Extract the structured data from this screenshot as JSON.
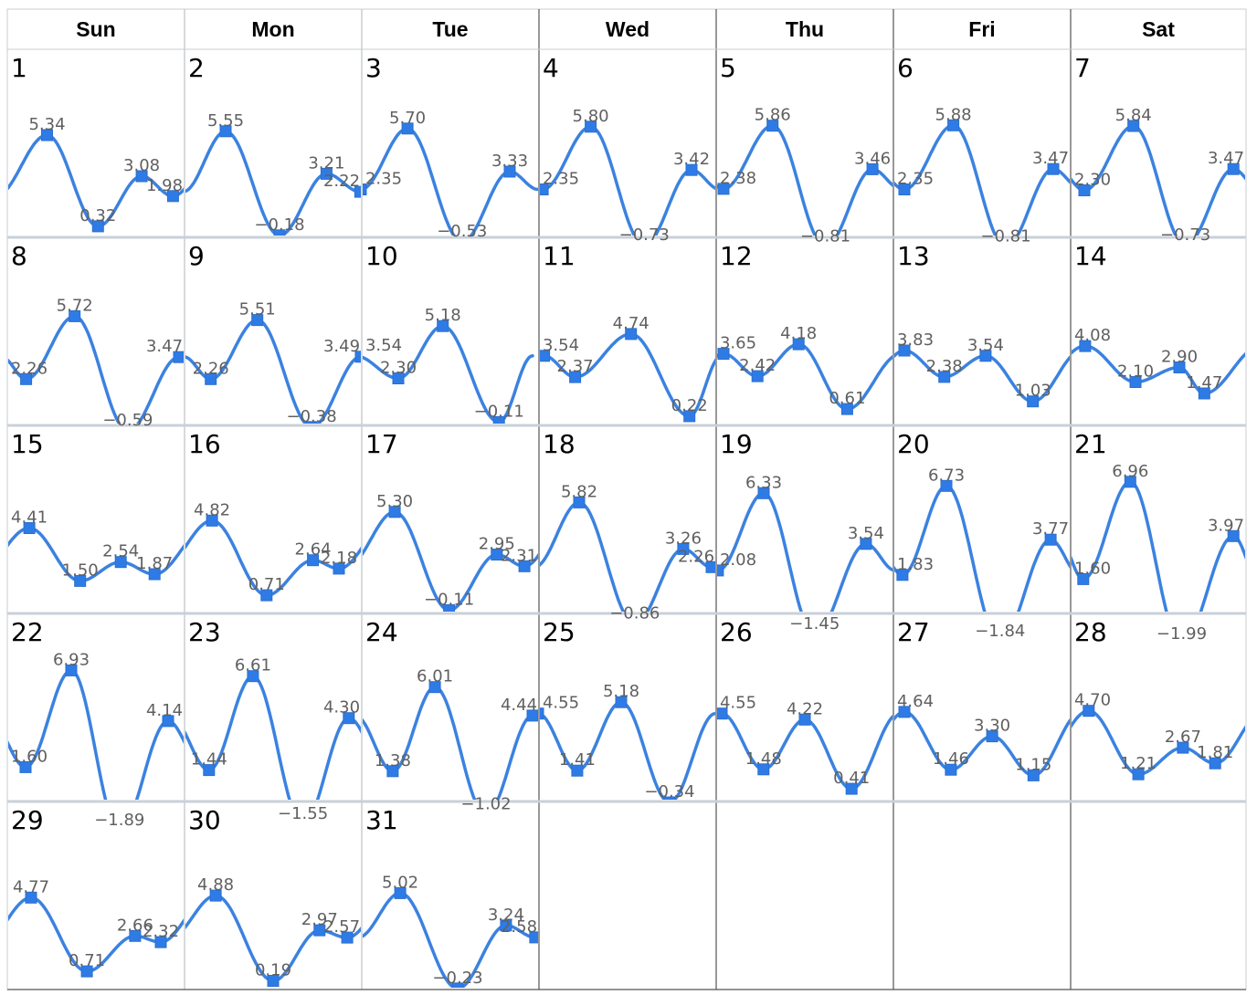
{
  "chart_data": {
    "type": "line",
    "title": "",
    "weekdays": [
      "Sun",
      "Mon",
      "Tue",
      "Wed",
      "Thu",
      "Fri",
      "Sat"
    ],
    "y_range": [
      -2.3,
      7.3
    ],
    "days": [
      {
        "day": "1",
        "points": [
          {
            "t": 0.224,
            "v": 5.34,
            "label": "5.34"
          },
          {
            "t": 0.512,
            "v": 0.32,
            "label": "0.32"
          },
          {
            "t": 0.758,
            "v": 3.08,
            "label": "3.08"
          },
          {
            "t": 0.935,
            "v": 1.98,
            "label": "1.98"
          }
        ]
      },
      {
        "day": "2",
        "points": [
          {
            "t": 0.232,
            "v": 5.55,
            "label": "5.55"
          },
          {
            "t": 0.536,
            "v": -0.18,
            "label": "−0.18"
          },
          {
            "t": 0.801,
            "v": 3.21,
            "label": "3.21"
          },
          {
            "t": 0.992,
            "v": 2.22,
            "label": "2.22"
          }
        ]
      },
      {
        "day": "3",
        "points": [
          {
            "t": 0.258,
            "v": 5.7,
            "label": "5.70"
          },
          {
            "t": 0.566,
            "v": -0.53,
            "label": "−0.53"
          },
          {
            "t": 0.835,
            "v": 3.33,
            "label": "3.33"
          },
          {
            "t": -0.005,
            "v": 2.35,
            "label": "2.35"
          }
        ]
      },
      {
        "day": "4",
        "points": [
          {
            "t": 0.292,
            "v": 5.8,
            "label": "5.80"
          },
          {
            "t": 0.594,
            "v": -0.73,
            "label": "−0.73"
          },
          {
            "t": 0.861,
            "v": 3.42,
            "label": "3.42"
          },
          {
            "t": 0.021,
            "v": 2.35,
            "label": "2.35"
          }
        ]
      },
      {
        "day": "5",
        "points": [
          {
            "t": 0.318,
            "v": 5.86,
            "label": "5.86"
          },
          {
            "t": 0.616,
            "v": -0.81,
            "label": "−0.81"
          },
          {
            "t": 0.882,
            "v": 3.46,
            "label": "3.46"
          },
          {
            "t": 0.041,
            "v": 2.38,
            "label": "2.38"
          }
        ]
      },
      {
        "day": "6",
        "points": [
          {
            "t": 0.338,
            "v": 5.88,
            "label": "5.88"
          },
          {
            "t": 0.634,
            "v": -0.81,
            "label": "−0.81"
          },
          {
            "t": 0.902,
            "v": 3.47,
            "label": "3.47"
          },
          {
            "t": 0.062,
            "v": 2.35,
            "label": "2.35"
          }
        ]
      },
      {
        "day": "7",
        "points": [
          {
            "t": 0.358,
            "v": 5.84,
            "label": "5.84"
          },
          {
            "t": 0.654,
            "v": -0.73,
            "label": "−0.73"
          },
          {
            "t": 0.928,
            "v": 3.47,
            "label": "3.47"
          },
          {
            "t": 0.078,
            "v": 2.3,
            "label": "2.30"
          }
        ]
      },
      {
        "day": "8",
        "points": [
          {
            "t": 0.38,
            "v": 5.72,
            "label": "5.72"
          },
          {
            "t": 0.68,
            "v": -0.59,
            "label": "−0.59"
          },
          {
            "t": 0.969,
            "v": 3.47,
            "label": "3.47"
          },
          {
            "t": 0.106,
            "v": 2.26,
            "label": "2.26"
          }
        ]
      },
      {
        "day": "9",
        "points": [
          {
            "t": 0.411,
            "v": 5.51,
            "label": "5.51"
          },
          {
            "t": 0.717,
            "v": -0.38,
            "label": "−0.38"
          },
          {
            "t": 0.995,
            "v": 3.49,
            "label": "3.49"
          },
          {
            "t": 0.148,
            "v": 2.26,
            "label": "2.26"
          }
        ]
      },
      {
        "day": "10",
        "points": [
          {
            "t": 0.457,
            "v": 5.18,
            "label": "5.18"
          },
          {
            "t": 0.774,
            "v": -0.11,
            "label": "−0.11"
          },
          {
            "t": -0.036,
            "v": 3.54,
            "label": "3.54"
          },
          {
            "t": 0.206,
            "v": 2.3,
            "label": "2.30"
          }
        ]
      },
      {
        "day": "11",
        "points": [
          {
            "t": 0.519,
            "v": 4.74,
            "label": "4.74"
          },
          {
            "t": 0.849,
            "v": 0.22,
            "label": "0.22"
          },
          {
            "t": 0.029,
            "v": 3.54,
            "label": "3.54"
          },
          {
            "t": 0.204,
            "v": 2.37,
            "label": "2.37"
          }
        ]
      },
      {
        "day": "12",
        "points": [
          {
            "t": 0.465,
            "v": 4.18,
            "label": "4.18"
          },
          {
            "t": 0.739,
            "v": 0.61,
            "label": "0.61"
          },
          {
            "t": 0.041,
            "v": 3.65,
            "label": "3.65"
          },
          {
            "t": 0.233,
            "v": 2.42,
            "label": "2.42"
          }
        ]
      },
      {
        "day": "13",
        "points": [
          {
            "t": 0.52,
            "v": 3.54,
            "label": "3.54"
          },
          {
            "t": 0.787,
            "v": 1.03,
            "label": "1.03"
          },
          {
            "t": 0.062,
            "v": 3.83,
            "label": "3.83"
          },
          {
            "t": 0.287,
            "v": 2.38,
            "label": "2.38"
          }
        ]
      },
      {
        "day": "14",
        "points": [
          {
            "t": 0.62,
            "v": 2.9,
            "label": "2.90"
          },
          {
            "t": 0.762,
            "v": 1.47,
            "label": "1.47"
          },
          {
            "t": 0.083,
            "v": 4.08,
            "label": "4.08"
          },
          {
            "t": 0.37,
            "v": 2.1,
            "label": "2.10"
          }
        ]
      },
      {
        "day": "15",
        "points": [
          {
            "t": 0.64,
            "v": 2.54,
            "label": "2.54"
          },
          {
            "t": 0.831,
            "v": 1.87,
            "label": "1.87"
          },
          {
            "t": 0.124,
            "v": 4.41,
            "label": "4.41"
          },
          {
            "t": 0.411,
            "v": 1.5,
            "label": "1.50"
          }
        ]
      },
      {
        "day": "16",
        "points": [
          {
            "t": 0.725,
            "v": 2.64,
            "label": "2.64"
          },
          {
            "t": 0.871,
            "v": 2.18,
            "label": "2.18"
          },
          {
            "t": 0.155,
            "v": 4.82,
            "label": "4.82"
          },
          {
            "t": 0.463,
            "v": 0.71,
            "label": "0.71"
          }
        ]
      },
      {
        "day": "17",
        "points": [
          {
            "t": 0.762,
            "v": 2.95,
            "label": "2.95"
          },
          {
            "t": 0.918,
            "v": 2.31,
            "label": "2.31"
          },
          {
            "t": 0.186,
            "v": 5.3,
            "label": "5.30"
          },
          {
            "t": 0.493,
            "v": -0.11,
            "label": "−0.11"
          }
        ]
      },
      {
        "day": "18",
        "points": [
          {
            "t": 0.814,
            "v": 3.26,
            "label": "3.26"
          },
          {
            "t": 0.974,
            "v": 2.26,
            "label": "2.26"
          },
          {
            "t": 0.227,
            "v": 5.82,
            "label": "5.82"
          },
          {
            "t": 0.54,
            "v": -0.86,
            "label": "−0.86"
          }
        ]
      },
      {
        "day": "19",
        "points": [
          {
            "t": 0.845,
            "v": 3.54,
            "label": "3.54"
          },
          {
            "t": 0.01,
            "v": 2.08,
            "label": "2.08"
          },
          {
            "t": 0.268,
            "v": 6.33,
            "label": "6.33"
          },
          {
            "t": 0.555,
            "v": -1.45,
            "label": "−1.45"
          }
        ]
      },
      {
        "day": "20",
        "points": [
          {
            "t": 0.887,
            "v": 3.77,
            "label": "3.77"
          },
          {
            "t": 0.051,
            "v": 1.83,
            "label": "1.83"
          },
          {
            "t": 0.299,
            "v": 6.73,
            "label": "6.73"
          },
          {
            "t": 0.602,
            "v": -1.84,
            "label": "−1.84"
          }
        ]
      },
      {
        "day": "21",
        "points": [
          {
            "t": 0.928,
            "v": 3.97,
            "label": "3.97"
          },
          {
            "t": 0.072,
            "v": 1.6,
            "label": "1.60"
          },
          {
            "t": 0.34,
            "v": 6.96,
            "label": "6.96"
          },
          {
            "t": 0.633,
            "v": -1.99,
            "label": "−1.99"
          }
        ]
      },
      {
        "day": "22",
        "points": [
          {
            "t": 0.907,
            "v": 4.14,
            "label": "4.14"
          },
          {
            "t": 0.103,
            "v": 1.6,
            "label": "1.60"
          },
          {
            "t": 0.361,
            "v": 6.93,
            "label": "6.93"
          },
          {
            "t": 0.633,
            "v": -1.89,
            "label": "−1.89"
          }
        ]
      },
      {
        "day": "23",
        "points": [
          {
            "t": 0.927,
            "v": 4.3,
            "label": "4.30"
          },
          {
            "t": 0.138,
            "v": 1.44,
            "label": "1.44"
          },
          {
            "t": 0.386,
            "v": 6.61,
            "label": "6.61"
          },
          {
            "t": 0.668,
            "v": -1.55,
            "label": "−1.55"
          }
        ]
      },
      {
        "day": "24",
        "points": [
          {
            "t": 0.964,
            "v": 4.44,
            "label": "4.44"
          },
          {
            "t": 0.175,
            "v": 1.38,
            "label": "1.38"
          },
          {
            "t": 0.413,
            "v": 6.01,
            "label": "6.01"
          },
          {
            "t": 0.701,
            "v": -1.02,
            "label": "−1.02"
          }
        ]
      },
      {
        "day": "25",
        "points": [
          {
            "t": 0.464,
            "v": 5.18,
            "label": "5.18"
          },
          {
            "t": 0.737,
            "v": -0.34,
            "label": "−0.34"
          },
          {
            "t": -0.005,
            "v": 4.55,
            "label": "4.55"
          },
          {
            "t": 0.216,
            "v": 1.41,
            "label": "1.41"
          }
        ]
      },
      {
        "day": "26",
        "points": [
          {
            "t": 0.5,
            "v": 4.22,
            "label": "4.22"
          },
          {
            "t": 0.764,
            "v": 0.41,
            "label": "0.41"
          },
          {
            "t": 0.031,
            "v": 4.55,
            "label": "4.55"
          },
          {
            "t": 0.267,
            "v": 1.48,
            "label": "1.48"
          }
        ]
      },
      {
        "day": "27",
        "points": [
          {
            "t": 0.557,
            "v": 3.3,
            "label": "3.30"
          },
          {
            "t": 0.79,
            "v": 1.15,
            "label": "1.15"
          },
          {
            "t": 0.062,
            "v": 4.64,
            "label": "4.64"
          },
          {
            "t": 0.324,
            "v": 1.46,
            "label": "1.46"
          }
        ]
      },
      {
        "day": "28",
        "points": [
          {
            "t": 0.64,
            "v": 2.67,
            "label": "2.67"
          },
          {
            "t": 0.824,
            "v": 1.81,
            "label": "1.81"
          },
          {
            "t": 0.103,
            "v": 4.7,
            "label": "4.70"
          },
          {
            "t": 0.386,
            "v": 1.21,
            "label": "1.21"
          }
        ]
      },
      {
        "day": "29",
        "points": [
          {
            "t": 0.721,
            "v": 2.66,
            "label": "2.66"
          },
          {
            "t": 0.866,
            "v": 2.32,
            "label": "2.32"
          },
          {
            "t": 0.134,
            "v": 4.77,
            "label": "4.77"
          },
          {
            "t": 0.449,
            "v": 0.71,
            "label": "0.71"
          }
        ]
      },
      {
        "day": "30",
        "points": [
          {
            "t": 0.762,
            "v": 2.97,
            "label": "2.97"
          },
          {
            "t": 0.918,
            "v": 2.57,
            "label": "2.57"
          },
          {
            "t": 0.176,
            "v": 4.88,
            "label": "4.88"
          },
          {
            "t": 0.5,
            "v": 0.19,
            "label": "0.19"
          }
        ]
      },
      {
        "day": "31",
        "points": [
          {
            "t": 0.814,
            "v": 3.24,
            "label": "3.24"
          },
          {
            "t": 0.979,
            "v": 2.58,
            "label": "2.58"
          },
          {
            "t": 0.217,
            "v": 5.02,
            "label": "5.02"
          },
          {
            "t": 0.541,
            "v": -0.23,
            "label": "−0.23"
          }
        ]
      }
    ],
    "line_color": "#3b82e0",
    "marker_color": "#2f7be6",
    "label_color": "#606060",
    "grid": true,
    "legend": "none"
  }
}
